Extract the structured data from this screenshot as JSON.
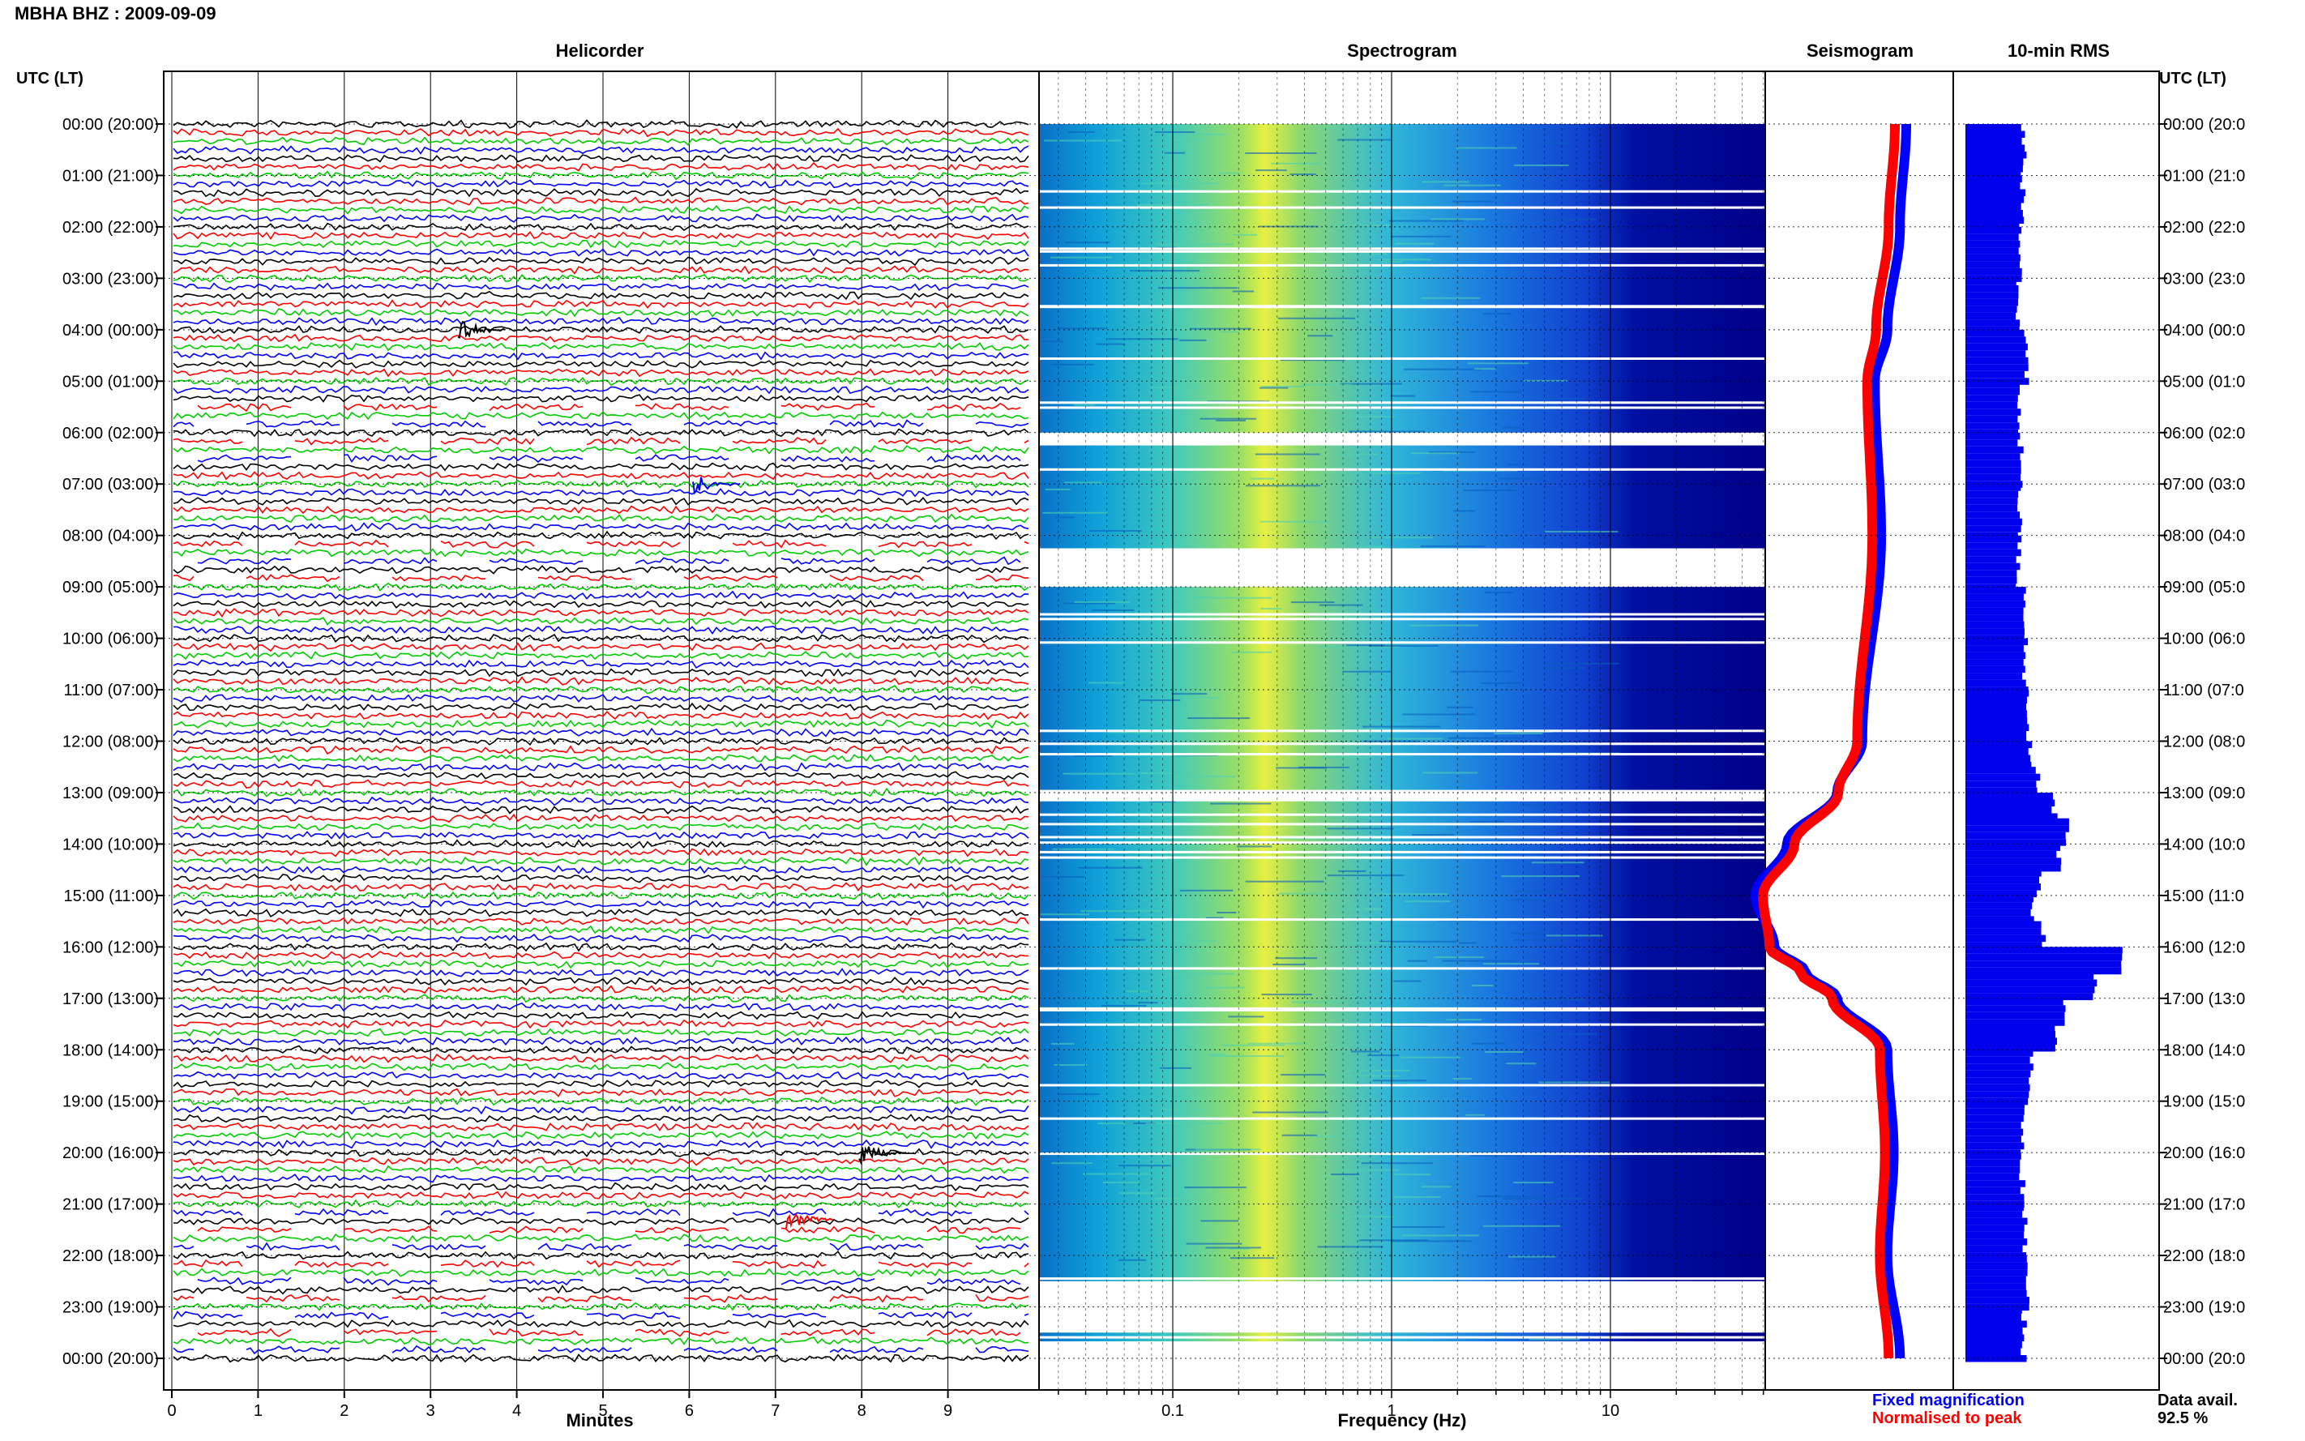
{
  "header": {
    "station_title": "MBHA BHZ : 2009-09-09"
  },
  "panels": {
    "helicorder": "Helicorder",
    "spectrogram": "Spectrogram",
    "seismogram": "Seismogram",
    "rms": "10-min RMS"
  },
  "axis_labels": {
    "left_time": "UTC (LT)",
    "right_time": "UTC (LT)",
    "minutes": "Minutes",
    "frequency": "Frequency (Hz)"
  },
  "legend": {
    "fixed": "Fixed magnification",
    "normalised": "Normalised to peak",
    "fixed_color": "#0000ff",
    "normalised_color": "#ff0000"
  },
  "data_availability": {
    "label": "Data avail.",
    "value": "92.5 %"
  },
  "colors": {
    "trace_cycle": [
      "#000000",
      "#ff0000",
      "#00cc00",
      "#0000ff"
    ],
    "rms_bar": "#0000ee",
    "spectrogram_low": "#0000aa",
    "spectrogram_mid": "#00ccff",
    "spectrogram_high": "#ffff00"
  },
  "chart_data": [
    {
      "type": "helicorder",
      "title": "Helicorder",
      "xlabel": "Minutes",
      "x_ticks": [
        "0",
        "1",
        "2",
        "3",
        "4",
        "5",
        "6",
        "7",
        "8",
        "9"
      ],
      "xlim": [
        0,
        10
      ],
      "lines_per_hour": 6,
      "hour_labels_left": [
        "00:00 (20:00)",
        "01:00 (21:00)",
        "02:00 (22:00)",
        "03:00 (23:00)",
        "04:00 (00:00)",
        "05:00 (01:00)",
        "06:00 (02:00)",
        "07:00 (03:00)",
        "08:00 (04:00)",
        "09:00 (05:00)",
        "10:00 (06:00)",
        "11:00 (07:00)",
        "12:00 (08:00)",
        "13:00 (09:00)",
        "14:00 (10:00)",
        "15:00 (11:00)",
        "16:00 (12:00)",
        "17:00 (13:00)",
        "18:00 (14:00)",
        "19:00 (15:00)",
        "20:00 (16:00)",
        "21:00 (17:00)",
        "22:00 (18:00)",
        "23:00 (19:00)",
        "00:00 (20:00)"
      ],
      "hour_labels_right": [
        "00:00 (20:0",
        "01:00 (21:0",
        "02:00 (22:0",
        "03:00 (23:0",
        "04:00 (00:0",
        "05:00 (01:0",
        "06:00 (02:0",
        "07:00 (03:0",
        "08:00 (04:0",
        "09:00 (05:0",
        "10:00 (06:0",
        "11:00 (07:0",
        "12:00 (08:0",
        "13:00 (09:0",
        "14:00 (10:0",
        "15:00 (11:0",
        "16:00 (12:0",
        "17:00 (13:0",
        "18:00 (14:0",
        "19:00 (15:0",
        "20:00 (16:0",
        "21:00 (17:0",
        "22:00 (18:0",
        "23:00 (19:0",
        "00:00 (20:0"
      ],
      "gap_hours": [
        6,
        8.5,
        21.5,
        22,
        23,
        23.5
      ],
      "events_hour": [
        4.0,
        7.0,
        20.0,
        21.3
      ]
    },
    {
      "type": "spectrogram",
      "title": "Spectrogram",
      "xlabel": "Frequency (Hz)",
      "x_scale": "log",
      "xlim": [
        0.03,
        50
      ],
      "x_ticks": [
        "0.1",
        "1",
        "10"
      ],
      "gap_hours": [
        [
          6.0,
          6.25
        ],
        [
          8.25,
          9.0
        ],
        [
          13.0,
          13.17
        ],
        [
          22.5,
          23.5
        ],
        [
          23.67,
          24.0
        ]
      ]
    },
    {
      "type": "line",
      "title": "Seismogram",
      "series": [
        {
          "name": "Fixed magnification",
          "x": [
            0,
            2,
            4,
            5,
            8,
            12,
            13,
            14,
            15,
            16,
            16.5,
            17,
            18,
            20,
            22,
            24
          ],
          "y": [
            0.0,
            -0.05,
            -0.15,
            -0.25,
            -0.2,
            -0.35,
            -0.55,
            -0.95,
            -1.2,
            -1.05,
            -0.8,
            -0.55,
            -0.15,
            -0.1,
            -0.15,
            -0.05
          ]
        },
        {
          "name": "Normalised to peak",
          "x": [
            0,
            2,
            4,
            5,
            8,
            12,
            13,
            14,
            15,
            16,
            16.5,
            17,
            18,
            20,
            22,
            24
          ],
          "y": [
            0.0,
            -0.05,
            -0.15,
            -0.22,
            -0.18,
            -0.3,
            -0.45,
            -0.8,
            -1.05,
            -1.0,
            -0.75,
            -0.5,
            -0.12,
            -0.08,
            -0.12,
            -0.05
          ]
        }
      ]
    },
    {
      "type": "bar",
      "title": "10-min RMS",
      "orientation": "horizontal",
      "categories_hour": [
        0,
        1,
        2,
        3,
        4,
        5,
        6,
        7,
        8,
        9,
        10,
        11,
        12,
        12.5,
        13,
        13.5,
        14,
        14.5,
        15,
        15.5,
        16,
        16.5,
        17,
        17.5,
        18,
        19,
        20,
        21,
        22,
        23
      ],
      "values": [
        0.36,
        0.35,
        0.33,
        0.33,
        0.38,
        0.34,
        0.34,
        0.33,
        0.33,
        0.36,
        0.37,
        0.38,
        0.4,
        0.45,
        0.55,
        0.62,
        0.58,
        0.45,
        0.42,
        0.48,
        0.95,
        0.8,
        0.62,
        0.55,
        0.4,
        0.36,
        0.35,
        0.37,
        0.38,
        0.36
      ]
    }
  ]
}
